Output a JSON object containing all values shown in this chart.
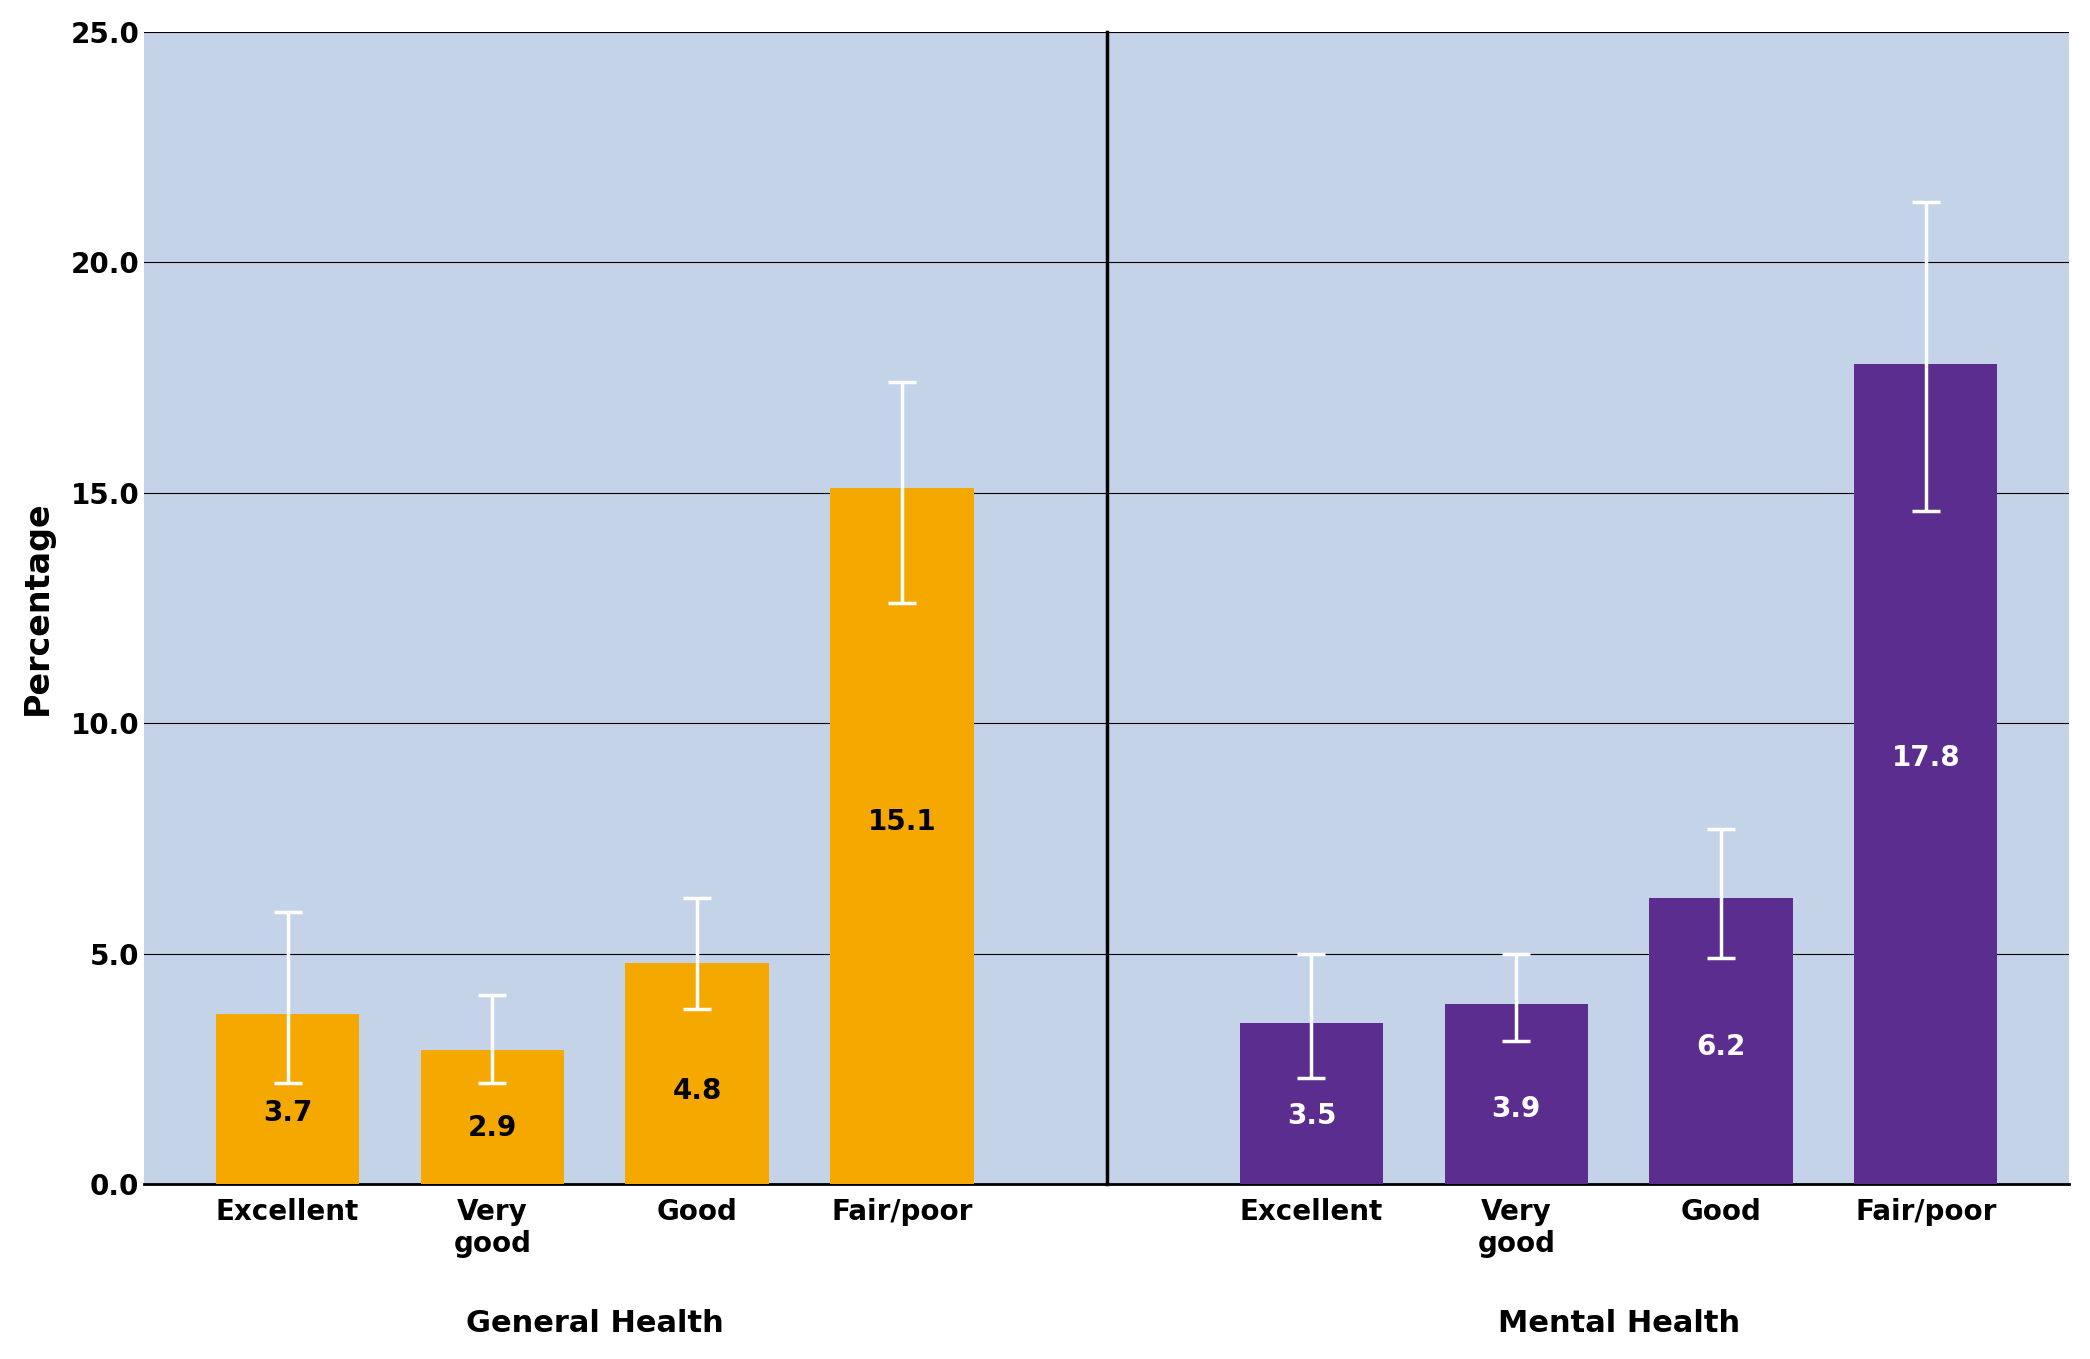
{
  "categories": [
    "Excellent",
    "Very\ngood",
    "Good",
    "Fair/poor",
    "Excellent",
    "Very\ngood",
    "Good",
    "Fair/poor"
  ],
  "values": [
    3.7,
    2.9,
    4.8,
    15.1,
    3.5,
    3.9,
    6.2,
    17.8
  ],
  "errors_low": [
    1.5,
    0.7,
    1.0,
    2.5,
    1.2,
    0.8,
    1.3,
    3.2
  ],
  "errors_high": [
    2.2,
    1.2,
    1.4,
    2.3,
    1.5,
    1.1,
    1.5,
    3.5
  ],
  "bar_colors": [
    "#F5A800",
    "#F5A800",
    "#F5A800",
    "#F5A800",
    "#5B2D8E",
    "#5B2D8E",
    "#5B2D8E",
    "#5B2D8E"
  ],
  "label_colors": [
    "black",
    "black",
    "black",
    "black",
    "white",
    "white",
    "white",
    "white"
  ],
  "ylabel": "Percentage",
  "ylim": [
    0,
    25
  ],
  "yticks": [
    0.0,
    5.0,
    10.0,
    15.0,
    20.0,
    25.0
  ],
  "background_color": "#C5D3E8",
  "group_labels": [
    "General Health",
    "Mental Health"
  ],
  "group_label_fontsize": 22,
  "tick_fontsize": 20,
  "ylabel_fontsize": 24,
  "value_fontsize": 20,
  "error_color": "white",
  "error_linewidth": 2.5,
  "error_capsize": 10,
  "bar_width": 0.7,
  "x_positions": [
    0,
    1,
    2,
    3,
    5,
    6,
    7,
    8
  ]
}
